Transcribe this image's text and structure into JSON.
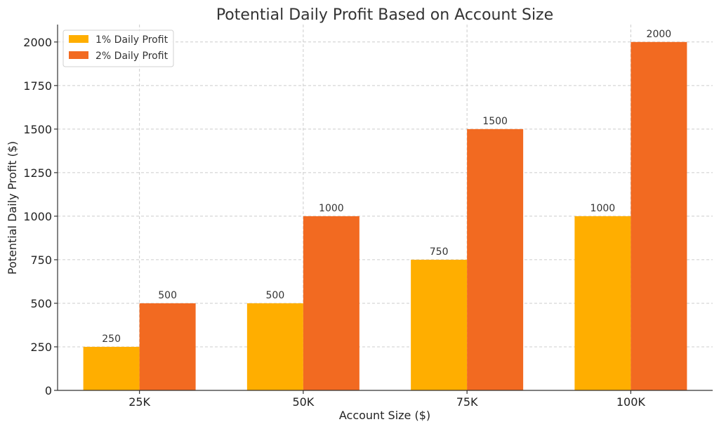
{
  "chart_data": {
    "type": "bar",
    "title": "Potential Daily Profit Based on Account Size",
    "xlabel": "Account Size ($)",
    "ylabel": "Potential Daily Profit ($)",
    "categories": [
      "25K",
      "50K",
      "75K",
      "100K"
    ],
    "series": [
      {
        "name": "1% Daily Profit",
        "values": [
          250,
          500,
          750,
          1000
        ],
        "color": "#FFAE00"
      },
      {
        "name": "2% Daily Profit",
        "values": [
          500,
          1000,
          1500,
          2000
        ],
        "color": "#F26A21"
      }
    ],
    "ylim": [
      0,
      2100
    ],
    "yticks": [
      0,
      250,
      500,
      750,
      1000,
      1250,
      1500,
      1750,
      2000
    ],
    "grid": true,
    "legend_position": "top-left"
  }
}
